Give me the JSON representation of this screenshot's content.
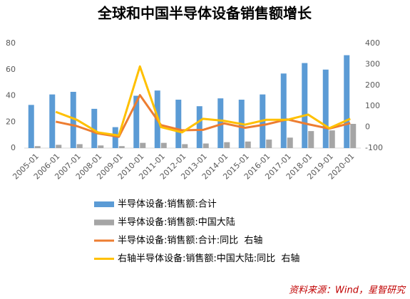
{
  "chart_data": {
    "type": "bar_line",
    "title": "全球和中国半导体设备销售额增长",
    "categories": [
      "2005-01",
      "2006-01",
      "2007-01",
      "2008-01",
      "2009-01",
      "2010-01",
      "2011-01",
      "2012-01",
      "2013-01",
      "2014-01",
      "2015-01",
      "2016-01",
      "2017-01",
      "2018-01",
      "2019-01",
      "2020-01"
    ],
    "series": [
      {
        "name": "半导体设备:销售额:合计",
        "color": "#5b9bd5",
        "kind": "bar",
        "values": [
          33,
          41,
          43,
          30,
          16,
          40,
          44,
          37,
          32,
          38,
          37,
          41,
          57,
          65,
          60,
          71
        ]
      },
      {
        "name": "半导体设备:销售额:中国大陆",
        "color": "#a5a5a5",
        "kind": "bar",
        "values": [
          1.5,
          2.5,
          3,
          2,
          1.5,
          4,
          4,
          3,
          3.5,
          4.5,
          5,
          6.5,
          8,
          13,
          13.5,
          18.5
        ]
      },
      {
        "name": "半导体设备:销售额:合计:同比  右轴",
        "color": "#ed7d31",
        "kind": "line",
        "axis": "y2",
        "values": [
          null,
          26,
          5,
          -30,
          -46,
          153,
          10,
          -15,
          -13,
          18,
          -3,
          13,
          37,
          14,
          -7,
          19
        ]
      },
      {
        "name": "右轴半导体设备:销售额:中国大陆:同比  右轴",
        "color": "#ffc000",
        "kind": "line",
        "axis": "y2",
        "values": [
          null,
          73,
          35,
          -25,
          -40,
          290,
          0,
          -25,
          40,
          30,
          12,
          35,
          35,
          60,
          -5,
          40
        ]
      }
    ],
    "ylim": [
      0,
      80
    ],
    "yticks": [
      0,
      20,
      40,
      60,
      80
    ],
    "y2lim": [
      -100,
      400
    ],
    "y2ticks": [
      -100,
      0,
      100,
      200,
      300,
      400
    ]
  },
  "source": "资料来源：Wind，星智研究"
}
